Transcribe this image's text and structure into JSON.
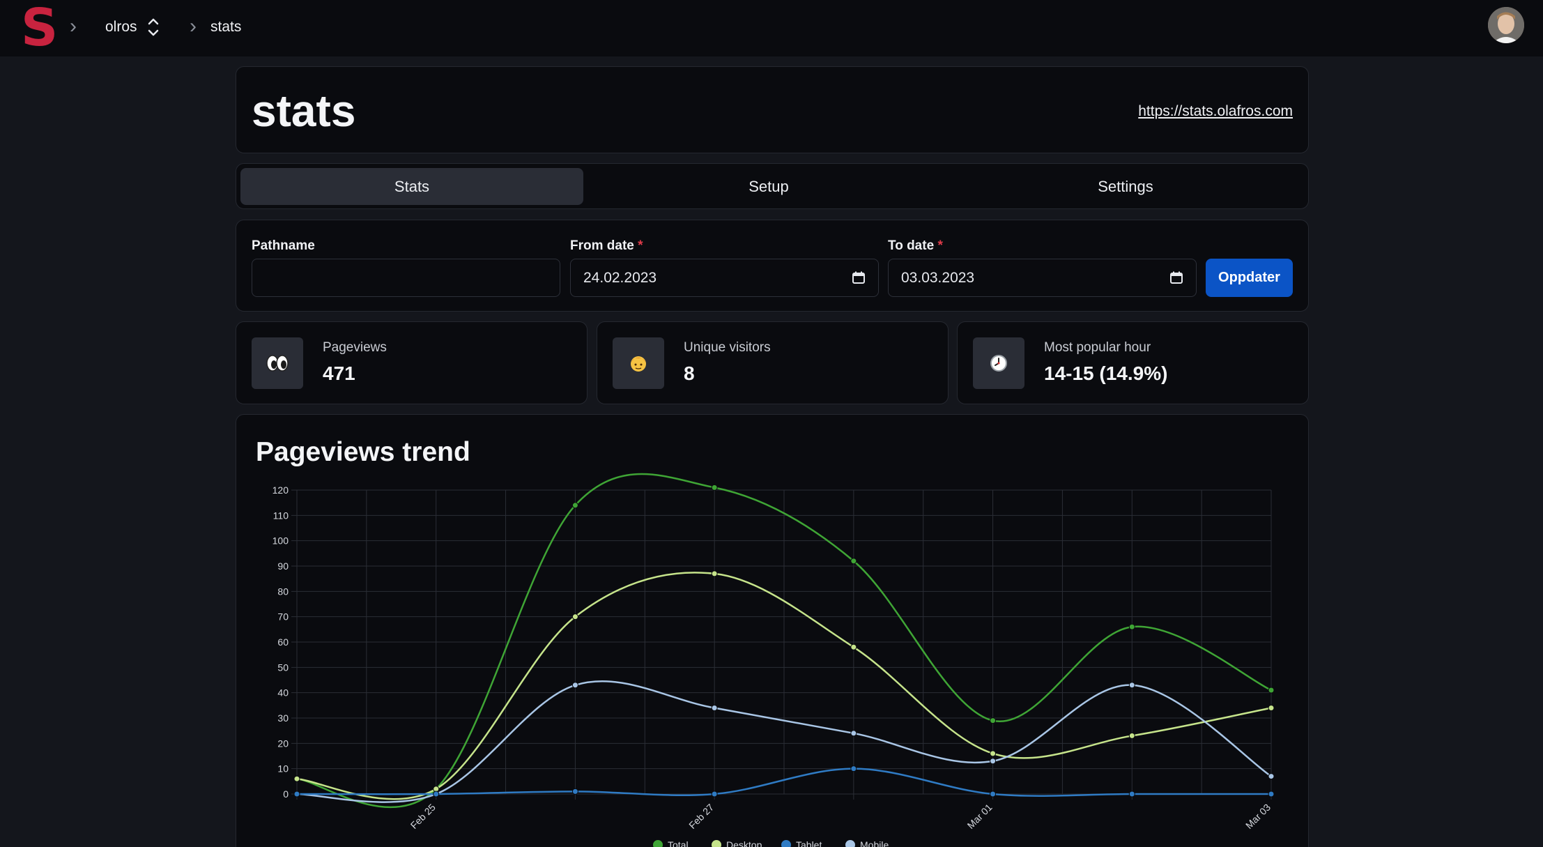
{
  "header": {
    "logo_letter": "S",
    "breadcrumbs": [
      "olros",
      "stats"
    ],
    "avatar_label": "user-avatar"
  },
  "project": {
    "title": "stats",
    "url": "https://stats.olafros.com"
  },
  "tabs": [
    {
      "label": "Stats",
      "active": true
    },
    {
      "label": "Setup",
      "active": false
    },
    {
      "label": "Settings",
      "active": false
    }
  ],
  "filters": {
    "pathname_label": "Pathname",
    "pathname_value": "",
    "from_label": "From date",
    "from_value": "24.02.2023",
    "to_label": "To date",
    "to_value": "03.03.2023",
    "required_mark": "*",
    "update_button": "Oppdater"
  },
  "stats": [
    {
      "icon": "eyes-icon",
      "label": "Pageviews",
      "value": "471"
    },
    {
      "icon": "person-icon",
      "label": "Unique visitors",
      "value": "8"
    },
    {
      "icon": "clock-icon",
      "label": "Most popular hour",
      "value": "14-15 (14.9%)"
    }
  ],
  "chart_title": "Pageviews trend",
  "chart_data": {
    "type": "line",
    "x": [
      "2023-02-24",
      "2023-02-25",
      "2023-02-26",
      "2023-02-27",
      "2023-02-28",
      "2023-03-01",
      "2023-03-02",
      "2023-03-03"
    ],
    "x_tick_labels": [
      "",
      "Feb 25",
      "",
      "Feb 27",
      "",
      "Mar 01",
      "",
      "Mar 03"
    ],
    "y_ticks": [
      0,
      10,
      20,
      30,
      40,
      50,
      60,
      70,
      80,
      90,
      100,
      110,
      120
    ],
    "ylim": [
      0,
      120
    ],
    "grid": true,
    "legend_position": "bottom",
    "series": [
      {
        "name": "Total",
        "color": "#3fa535",
        "values": [
          6,
          2,
          114,
          121,
          92,
          29,
          66,
          41
        ]
      },
      {
        "name": "Desktop",
        "color": "#c6e48b",
        "values": [
          6,
          2,
          70,
          87,
          58,
          16,
          23,
          34
        ]
      },
      {
        "name": "Tablet",
        "color": "#2f7bc4",
        "values": [
          0,
          0,
          1,
          0,
          10,
          0,
          0,
          0
        ]
      },
      {
        "name": "Mobile",
        "color": "#a9c6e6",
        "values": [
          0,
          0,
          43,
          34,
          24,
          13,
          43,
          7
        ]
      }
    ]
  }
}
